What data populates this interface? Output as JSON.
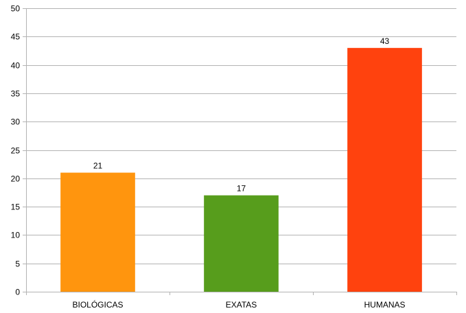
{
  "chart_data": {
    "type": "bar",
    "categories": [
      "BIOLÓGICAS",
      "EXATAS",
      "HUMANAS"
    ],
    "values": [
      21,
      17,
      43
    ],
    "data_labels": [
      "21",
      "17",
      "43"
    ],
    "colors": [
      "#ff950e",
      "#579d1c",
      "#ff420e"
    ],
    "title": "",
    "xlabel": "",
    "ylabel": "",
    "ylim": [
      0,
      50
    ],
    "yticks": [
      "0",
      "5",
      "10",
      "15",
      "20",
      "25",
      "30",
      "35",
      "40",
      "45",
      "50"
    ],
    "grid": true,
    "legend": "none"
  }
}
